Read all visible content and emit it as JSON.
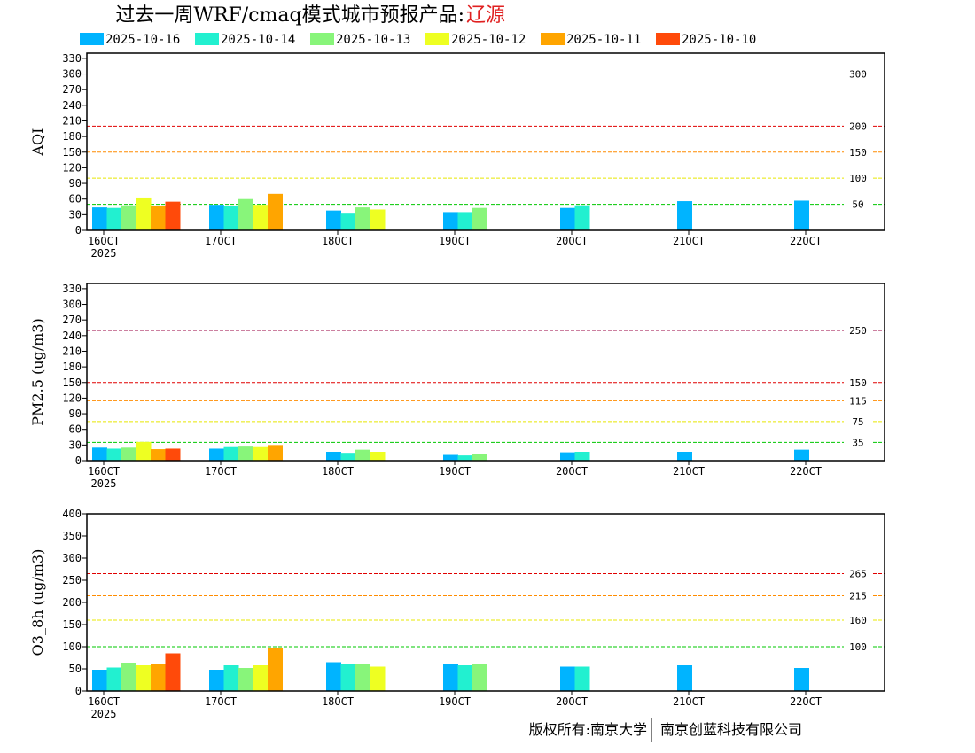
{
  "title": {
    "main": "过去一周WRF/cmaq模式城市预报产品:",
    "city": "辽源"
  },
  "footer": {
    "left": "版权所有:南京大学",
    "right": "南京创蓝科技有限公司"
  },
  "colors": {
    "2025-10-16": "#00b4ff",
    "2025-10-14": "#22f0d0",
    "2025-10-13": "#88f57a",
    "2025-10-12": "#eeff22",
    "2025-10-11": "#ffa500",
    "2025-10-10": "#ff4a0a",
    "threshold_colors": [
      "#00c800",
      "#e8e800",
      "#ff8c00",
      "#e00000",
      "#990040"
    ]
  },
  "chart_data": [
    {
      "type": "bar",
      "ylabel": "AQI",
      "ylim": [
        0,
        340
      ],
      "yticks": [
        0,
        30,
        60,
        90,
        120,
        150,
        180,
        210,
        240,
        270,
        300,
        330
      ],
      "xtick_labels": [
        "16OCT",
        "17OCT",
        "18OCT",
        "19OCT",
        "20OCT",
        "21OCT",
        "22OCT"
      ],
      "xtick_sublabel": "2025",
      "thresholds": [
        {
          "value": 50,
          "label": "50"
        },
        {
          "value": 100,
          "label": "100"
        },
        {
          "value": 150,
          "label": "150"
        },
        {
          "value": 200,
          "label": "200"
        },
        {
          "value": 300,
          "label": "300"
        }
      ],
      "series": [
        {
          "name": "2025-10-16",
          "values": [
            44,
            49,
            38,
            35,
            43,
            56,
            57
          ]
        },
        {
          "name": "2025-10-14",
          "values": [
            43,
            47,
            32,
            35,
            48,
            null,
            null
          ]
        },
        {
          "name": "2025-10-13",
          "values": [
            48,
            60,
            44,
            43,
            null,
            null,
            null
          ]
        },
        {
          "name": "2025-10-12",
          "values": [
            63,
            49,
            40,
            null,
            null,
            null,
            null
          ]
        },
        {
          "name": "2025-10-11",
          "values": [
            47,
            70,
            null,
            null,
            null,
            null,
            null
          ]
        },
        {
          "name": "2025-10-10",
          "values": [
            55,
            null,
            null,
            null,
            null,
            null,
            null
          ]
        }
      ]
    },
    {
      "type": "bar",
      "ylabel": "PM2.5 (ug/m3)",
      "ylim": [
        0,
        340
      ],
      "yticks": [
        0,
        30,
        60,
        90,
        120,
        150,
        180,
        210,
        240,
        270,
        300,
        330
      ],
      "xtick_labels": [
        "16OCT",
        "17OCT",
        "18OCT",
        "19OCT",
        "20OCT",
        "21OCT",
        "22OCT"
      ],
      "xtick_sublabel": "2025",
      "thresholds": [
        {
          "value": 35,
          "label": "35"
        },
        {
          "value": 75,
          "label": "75"
        },
        {
          "value": 115,
          "label": "115"
        },
        {
          "value": 150,
          "label": "150"
        },
        {
          "value": 250,
          "label": "250"
        }
      ],
      "series": [
        {
          "name": "2025-10-16",
          "values": [
            25,
            23,
            17,
            11,
            16,
            17,
            21
          ]
        },
        {
          "name": "2025-10-14",
          "values": [
            23,
            26,
            15,
            10,
            17,
            null,
            null
          ]
        },
        {
          "name": "2025-10-13",
          "values": [
            25,
            27,
            21,
            12,
            null,
            null,
            null
          ]
        },
        {
          "name": "2025-10-12",
          "values": [
            36,
            26,
            17,
            null,
            null,
            null,
            null
          ]
        },
        {
          "name": "2025-10-11",
          "values": [
            22,
            30,
            null,
            null,
            null,
            null,
            null
          ]
        },
        {
          "name": "2025-10-10",
          "values": [
            23,
            null,
            null,
            null,
            null,
            null,
            null
          ]
        }
      ]
    },
    {
      "type": "bar",
      "ylabel": "O3_8h (ug/m3)",
      "ylim": [
        0,
        400
      ],
      "yticks": [
        0,
        50,
        100,
        150,
        200,
        250,
        300,
        350,
        400
      ],
      "xtick_labels": [
        "16OCT",
        "17OCT",
        "18OCT",
        "19OCT",
        "20OCT",
        "21OCT",
        "22OCT"
      ],
      "xtick_sublabel": "2025",
      "thresholds": [
        {
          "value": 100,
          "label": "100"
        },
        {
          "value": 160,
          "label": "160"
        },
        {
          "value": 215,
          "label": "215"
        },
        {
          "value": 265,
          "label": "265"
        }
      ],
      "series": [
        {
          "name": "2025-10-16",
          "values": [
            48,
            48,
            65,
            60,
            55,
            58,
            52
          ]
        },
        {
          "name": "2025-10-14",
          "values": [
            53,
            58,
            62,
            58,
            55,
            null,
            null
          ]
        },
        {
          "name": "2025-10-13",
          "values": [
            64,
            52,
            62,
            62,
            null,
            null,
            null
          ]
        },
        {
          "name": "2025-10-12",
          "values": [
            58,
            58,
            55,
            null,
            null,
            null,
            null
          ]
        },
        {
          "name": "2025-10-11",
          "values": [
            60,
            97,
            null,
            null,
            null,
            null,
            null
          ]
        },
        {
          "name": "2025-10-10",
          "values": [
            85,
            null,
            null,
            null,
            null,
            null,
            null
          ]
        }
      ]
    }
  ]
}
